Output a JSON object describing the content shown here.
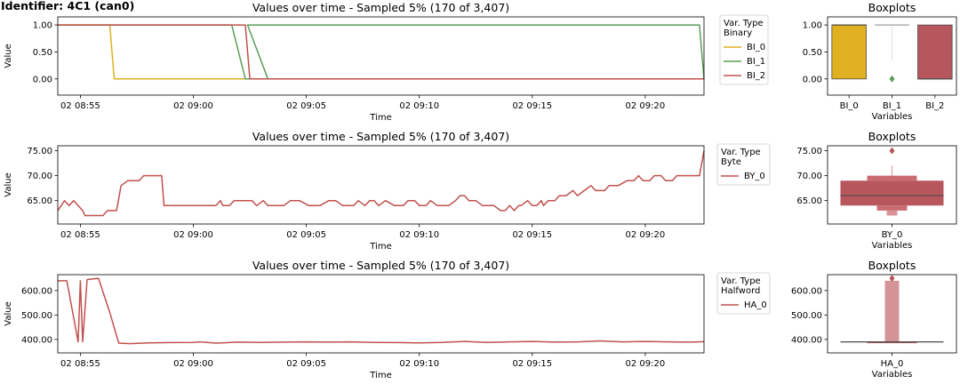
{
  "identifier": "Identifier: 4C1 (can0)",
  "colors": {
    "BI_0": "#e0b020",
    "BI_1": "#5a9e5a",
    "BI_2": "#c0504d",
    "BY_0": "#c0504d",
    "HA_0": "#c0504d",
    "box_BI_0": "#e0b020",
    "box_BI_2": "#b8565e",
    "box_BY_0": "#b8565e",
    "box_HA_0": "#d49396"
  },
  "chart_data": [
    {
      "type": "line",
      "title": "Values over time - Sampled 5% (170 of 3,407)",
      "xlabel": "Time",
      "ylabel": "Value",
      "x_ticks": [
        "02 08:55",
        "02 09:00",
        "02 09:05",
        "02 09:10",
        "02 09:15",
        "02 09:20"
      ],
      "y_ticks": [
        "0.00",
        "0.50",
        "1.00"
      ],
      "ylim": [
        -0.3,
        1.15
      ],
      "xlim_minutes": [
        534.0,
        562.6
      ],
      "legend": {
        "title": "Var. Type\nBinary",
        "placement": "outside-right",
        "entries": [
          "BI_0",
          "BI_1",
          "BI_2"
        ]
      },
      "series": [
        {
          "name": "BI_0",
          "points": [
            [
              534.0,
              1
            ],
            [
              536.3,
              1
            ],
            [
              536.5,
              0
            ],
            [
              562.6,
              0
            ]
          ]
        },
        {
          "name": "BI_1",
          "points": [
            [
              534.0,
              1
            ],
            [
              541.7,
              1
            ],
            [
              542.3,
              0
            ],
            [
              543.3,
              0
            ],
            [
              542.4,
              1
            ],
            [
              562.4,
              1
            ],
            [
              562.6,
              0
            ]
          ]
        },
        {
          "name": "BI_2",
          "points": [
            [
              534.0,
              1
            ],
            [
              542.3,
              1
            ],
            [
              542.5,
              0
            ],
            [
              562.6,
              0
            ]
          ]
        }
      ]
    },
    {
      "type": "line",
      "title": "Values over time - Sampled 5% (170 of 3,407)",
      "xlabel": "Time",
      "ylabel": "Value",
      "x_ticks": [
        "02 08:55",
        "02 09:00",
        "02 09:05",
        "02 09:10",
        "02 09:15",
        "02 09:20"
      ],
      "y_ticks": [
        "65.00",
        "70.00",
        "75.00"
      ],
      "ylim": [
        60.3,
        76.0
      ],
      "xlim_minutes": [
        534.0,
        562.6
      ],
      "legend": {
        "title": "Var. Type\nByte",
        "placement": "outside-right",
        "entries": [
          "BY_0"
        ]
      },
      "series": [
        {
          "name": "BY_0",
          "points": [
            [
              534.0,
              63
            ],
            [
              534.3,
              65
            ],
            [
              534.5,
              64
            ],
            [
              534.7,
              65
            ],
            [
              535.1,
              63
            ],
            [
              535.2,
              62
            ],
            [
              536.0,
              62
            ],
            [
              536.2,
              63
            ],
            [
              536.6,
              63
            ],
            [
              536.8,
              68
            ],
            [
              537.1,
              69
            ],
            [
              537.6,
              69
            ],
            [
              537.8,
              70
            ],
            [
              538.6,
              70
            ],
            [
              538.7,
              64
            ],
            [
              541.0,
              64
            ],
            [
              541.2,
              65
            ],
            [
              541.3,
              64
            ],
            [
              541.6,
              64
            ],
            [
              541.8,
              65
            ],
            [
              542.6,
              65
            ],
            [
              542.8,
              64
            ],
            [
              543.1,
              65
            ],
            [
              543.3,
              64
            ],
            [
              544.0,
              64
            ],
            [
              544.3,
              65
            ],
            [
              544.7,
              65
            ],
            [
              545.1,
              64
            ],
            [
              545.6,
              64
            ],
            [
              546.0,
              65
            ],
            [
              546.3,
              65
            ],
            [
              546.6,
              64
            ],
            [
              547.1,
              64
            ],
            [
              547.3,
              65
            ],
            [
              547.6,
              64
            ],
            [
              547.8,
              65
            ],
            [
              548.0,
              65
            ],
            [
              548.2,
              64
            ],
            [
              548.5,
              65
            ],
            [
              548.9,
              64
            ],
            [
              549.3,
              64
            ],
            [
              549.5,
              65
            ],
            [
              549.8,
              65
            ],
            [
              550.0,
              64
            ],
            [
              550.3,
              64
            ],
            [
              550.5,
              65
            ],
            [
              550.8,
              64
            ],
            [
              551.0,
              64
            ],
            [
              551.3,
              64
            ],
            [
              551.6,
              65
            ],
            [
              551.8,
              66
            ],
            [
              552.0,
              66
            ],
            [
              552.2,
              65
            ],
            [
              552.5,
              65
            ],
            [
              552.8,
              64
            ],
            [
              553.3,
              64
            ],
            [
              553.6,
              63
            ],
            [
              553.8,
              63
            ],
            [
              554.0,
              64
            ],
            [
              554.2,
              63
            ],
            [
              554.4,
              64
            ],
            [
              554.5,
              64
            ],
            [
              554.8,
              65
            ],
            [
              555.0,
              64
            ],
            [
              555.2,
              64
            ],
            [
              555.4,
              65
            ],
            [
              555.5,
              64
            ],
            [
              555.7,
              65
            ],
            [
              556.0,
              65
            ],
            [
              556.2,
              66
            ],
            [
              556.5,
              66
            ],
            [
              556.8,
              67
            ],
            [
              557.0,
              66
            ],
            [
              557.3,
              67
            ],
            [
              557.6,
              68
            ],
            [
              557.8,
              67
            ],
            [
              558.2,
              67
            ],
            [
              558.4,
              68
            ],
            [
              558.8,
              68
            ],
            [
              559.2,
              69
            ],
            [
              559.5,
              69
            ],
            [
              559.7,
              70
            ],
            [
              559.9,
              69
            ],
            [
              560.2,
              69
            ],
            [
              560.4,
              70
            ],
            [
              560.7,
              70
            ],
            [
              560.9,
              69
            ],
            [
              561.2,
              69
            ],
            [
              561.4,
              70
            ],
            [
              562.0,
              70
            ],
            [
              562.4,
              70
            ],
            [
              562.6,
              75
            ]
          ]
        }
      ]
    },
    {
      "type": "line",
      "title": "Values over time - Sampled 5% (170 of 3,407)",
      "xlabel": "Time",
      "ylabel": "Value",
      "x_ticks": [
        "02 08:55",
        "02 09:00",
        "02 09:05",
        "02 09:10",
        "02 09:15",
        "02 09:20"
      ],
      "y_ticks": [
        "400.00",
        "500.00",
        "600.00"
      ],
      "ylim": [
        345,
        665
      ],
      "xlim_minutes": [
        534.0,
        562.6
      ],
      "legend": {
        "title": "Var. Type\nHalfword",
        "placement": "outside-right",
        "entries": [
          "HA_0"
        ]
      },
      "series": [
        {
          "name": "HA_0",
          "points": [
            [
              534.0,
              640
            ],
            [
              534.4,
              640
            ],
            [
              534.9,
              390
            ],
            [
              535.0,
              640
            ],
            [
              535.1,
              390
            ],
            [
              535.3,
              645
            ],
            [
              535.8,
              650
            ],
            [
              536.3,
              510
            ],
            [
              536.7,
              385
            ],
            [
              537.2,
              383
            ],
            [
              538.0,
              386
            ],
            [
              539.0,
              387
            ],
            [
              540.0,
              388
            ],
            [
              540.3,
              390
            ],
            [
              541.0,
              385
            ],
            [
              542.0,
              389
            ],
            [
              543.0,
              388
            ],
            [
              544.0,
              389
            ],
            [
              545.0,
              390
            ],
            [
              546.0,
              389
            ],
            [
              547.0,
              390
            ],
            [
              548.0,
              388
            ],
            [
              549.0,
              387
            ],
            [
              550.0,
              386
            ],
            [
              551.0,
              388
            ],
            [
              552.0,
              392
            ],
            [
              553.0,
              388
            ],
            [
              554.0,
              390
            ],
            [
              555.0,
              392
            ],
            [
              556.0,
              389
            ],
            [
              557.0,
              390
            ],
            [
              558.0,
              394
            ],
            [
              559.0,
              390
            ],
            [
              560.0,
              392
            ],
            [
              561.0,
              390
            ],
            [
              562.0,
              389
            ],
            [
              562.6,
              391
            ]
          ]
        }
      ]
    },
    {
      "type": "box",
      "title": "Boxplots",
      "xlabel": "Variables",
      "categories": [
        "BI_0",
        "BI_1",
        "BI_2"
      ],
      "y_ticks": [
        "0.00",
        "0.50",
        "1.00"
      ],
      "ylim": [
        -0.3,
        1.15
      ],
      "boxes": [
        {
          "name": "BI_0",
          "q1": 0,
          "median": 1,
          "q3": 1,
          "whisker_low": 0,
          "whisker_high": 1,
          "outliers": []
        },
        {
          "name": "BI_1",
          "q1": 1,
          "median": 1,
          "q3": 1,
          "whisker_low": 1,
          "whisker_high": 1,
          "outliers": [
            0
          ]
        },
        {
          "name": "BI_2",
          "q1": 0,
          "median": 0,
          "q3": 1,
          "whisker_low": 0,
          "whisker_high": 1,
          "outliers": []
        }
      ]
    },
    {
      "type": "box",
      "title": "Boxplots",
      "xlabel": "Variables",
      "categories": [
        "BY_0"
      ],
      "y_ticks": [
        "65.00",
        "70.00",
        "75.00"
      ],
      "ylim": [
        60.3,
        76.0
      ],
      "boxes": [
        {
          "name": "BY_0",
          "q1": 64,
          "median": 66,
          "q3": 69,
          "whisker_low": 62,
          "whisker_high": 70,
          "outliers": [
            75
          ]
        }
      ]
    },
    {
      "type": "box",
      "title": "Boxplots",
      "xlabel": "Variables",
      "categories": [
        "HA_0"
      ],
      "y_ticks": [
        "400.00",
        "500.00",
        "600.00"
      ],
      "ylim": [
        345,
        665
      ],
      "boxes": [
        {
          "name": "HA_0",
          "q1": 388,
          "median": 390,
          "q3": 392,
          "whisker_low": 383,
          "whisker_high": 645,
          "outliers": [
            650
          ]
        }
      ]
    }
  ]
}
